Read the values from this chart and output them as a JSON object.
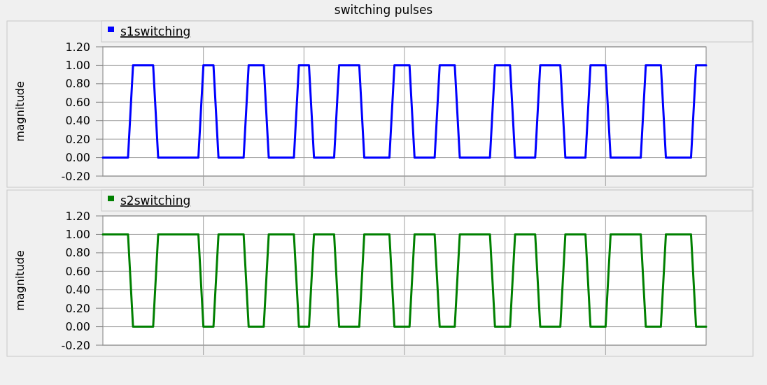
{
  "chart_data": [
    {
      "type": "line",
      "title": "switching pulses",
      "ylabel": "magnitude",
      "categories": [
        null,
        null,
        null,
        null,
        null,
        null,
        null,
        null,
        null,
        null,
        null,
        null,
        null,
        null,
        null,
        null,
        null,
        null,
        null,
        null,
        null,
        null,
        null,
        null,
        null,
        null,
        null,
        null,
        null,
        null,
        null,
        null,
        null,
        null,
        null,
        null,
        null,
        null,
        null,
        null,
        null,
        null,
        null,
        null,
        null,
        null,
        null,
        null,
        null,
        null,
        null,
        null,
        null,
        null,
        null,
        null,
        null,
        null,
        null,
        null,
        null,
        null,
        null,
        null,
        null,
        null,
        null,
        null,
        null,
        null,
        null,
        null,
        null,
        null,
        null,
        null,
        null,
        null,
        null,
        null,
        null,
        null,
        null,
        null,
        null,
        null,
        null,
        null,
        null,
        null,
        null,
        null,
        null,
        null,
        null,
        null,
        null,
        null,
        null,
        null,
        null,
        null,
        null,
        null,
        null,
        null,
        null,
        null,
        null,
        null,
        null,
        null,
        null,
        null,
        null,
        null,
        null,
        null,
        null,
        null,
        null
      ],
      "series": [
        {
          "name": "s1switching",
          "color": "#0000ff",
          "values": [
            0,
            0,
            0,
            0,
            0,
            0,
            1,
            1,
            1,
            1,
            1,
            0,
            0,
            0,
            0,
            0,
            0,
            0,
            0,
            0,
            1,
            1,
            1,
            0,
            0,
            0,
            0,
            0,
            0,
            1,
            1,
            1,
            1,
            0,
            0,
            0,
            0,
            0,
            0,
            1,
            1,
            1,
            0,
            0,
            0,
            0,
            0,
            1,
            1,
            1,
            1,
            1,
            0,
            0,
            0,
            0,
            0,
            0,
            1,
            1,
            1,
            1,
            0,
            0,
            0,
            0,
            0,
            1,
            1,
            1,
            1,
            0,
            0,
            0,
            0,
            0,
            0,
            0,
            1,
            1,
            1,
            1,
            0,
            0,
            0,
            0,
            0,
            1,
            1,
            1,
            1,
            1,
            0,
            0,
            0,
            0,
            0,
            1,
            1,
            1,
            1,
            0,
            0,
            0,
            0,
            0,
            0,
            0,
            1,
            1,
            1,
            1,
            0,
            0,
            0,
            0,
            0,
            0,
            1,
            1,
            1
          ]
        }
      ],
      "ylim": [
        -0.2,
        1.2
      ],
      "yticks": [
        {
          "value": -0.2,
          "label": "-0.20"
        },
        {
          "value": 0,
          "label": "0.00"
        },
        {
          "value": 0.2,
          "label": "0.20"
        },
        {
          "value": 0.4,
          "label": "0.40"
        },
        {
          "value": 0.6,
          "label": "0.60"
        },
        {
          "value": 0.8,
          "label": "0.80"
        },
        {
          "value": 1,
          "label": "1.00"
        },
        {
          "value": 1.2,
          "label": "1.20"
        }
      ],
      "grid": true,
      "legend": "top left"
    },
    {
      "type": "line",
      "ylabel": "magnitude",
      "categories": [
        null,
        null,
        null,
        null,
        null,
        null,
        null,
        null,
        null,
        null,
        null,
        null,
        null,
        null,
        null,
        null,
        null,
        null,
        null,
        null,
        null,
        null,
        null,
        null,
        null,
        null,
        null,
        null,
        null,
        null,
        null,
        null,
        null,
        null,
        null,
        null,
        null,
        null,
        null,
        null,
        null,
        null,
        null,
        null,
        null,
        null,
        null,
        null,
        null,
        null,
        null,
        null,
        null,
        null,
        null,
        null,
        null,
        null,
        null,
        null,
        null,
        null,
        null,
        null,
        null,
        null,
        null,
        null,
        null,
        null,
        null,
        null,
        null,
        null,
        null,
        null,
        null,
        null,
        null,
        null,
        null,
        null,
        null,
        null,
        null,
        null,
        null,
        null,
        null,
        null,
        null,
        null,
        null,
        null,
        null,
        null,
        null,
        null,
        null,
        null,
        null,
        null,
        null,
        null,
        null,
        null,
        null,
        null,
        null,
        null,
        null,
        null,
        null,
        null,
        null,
        null,
        null,
        null,
        null,
        null,
        null
      ],
      "series": [
        {
          "name": "s2switching",
          "color": "#008000",
          "values": [
            1,
            1,
            1,
            1,
            1,
            1,
            0,
            0,
            0,
            0,
            0,
            1,
            1,
            1,
            1,
            1,
            1,
            1,
            1,
            1,
            0,
            0,
            0,
            1,
            1,
            1,
            1,
            1,
            1,
            0,
            0,
            0,
            0,
            1,
            1,
            1,
            1,
            1,
            1,
            0,
            0,
            0,
            1,
            1,
            1,
            1,
            1,
            0,
            0,
            0,
            0,
            0,
            1,
            1,
            1,
            1,
            1,
            1,
            0,
            0,
            0,
            0,
            1,
            1,
            1,
            1,
            1,
            0,
            0,
            0,
            0,
            1,
            1,
            1,
            1,
            1,
            1,
            1,
            0,
            0,
            0,
            0,
            1,
            1,
            1,
            1,
            1,
            0,
            0,
            0,
            0,
            0,
            1,
            1,
            1,
            1,
            1,
            0,
            0,
            0,
            0,
            1,
            1,
            1,
            1,
            1,
            1,
            1,
            0,
            0,
            0,
            0,
            1,
            1,
            1,
            1,
            1,
            1,
            0,
            0,
            0
          ]
        }
      ],
      "ylim": [
        -0.2,
        1.2
      ],
      "yticks": [
        {
          "value": -0.2,
          "label": "-0.20"
        },
        {
          "value": 0,
          "label": "0.00"
        },
        {
          "value": 0.2,
          "label": "0.20"
        },
        {
          "value": 0.4,
          "label": "0.40"
        },
        {
          "value": 0.6,
          "label": "0.60"
        },
        {
          "value": 0.8,
          "label": "0.80"
        },
        {
          "value": 1,
          "label": "1.00"
        },
        {
          "value": 1.2,
          "label": "1.20"
        }
      ],
      "grid": true,
      "legend": "top left"
    }
  ]
}
